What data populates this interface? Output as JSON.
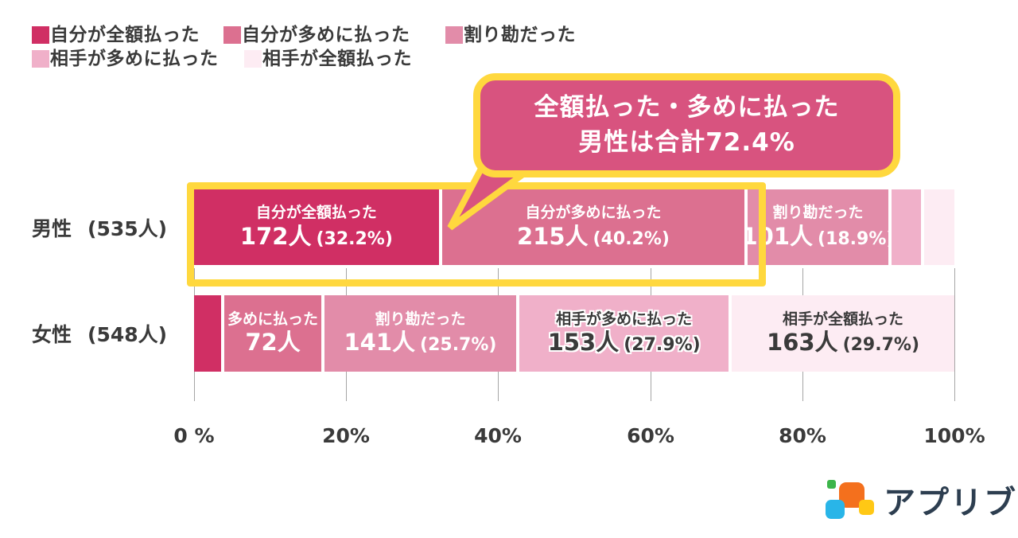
{
  "logo": {
    "text": "アプリブ"
  },
  "colors": {
    "background": "#ffffff",
    "series": [
      "#d02f64",
      "#dc7090",
      "#e28ca9",
      "#f0b0c9",
      "#fdecf3"
    ],
    "callout_fill": "#d8537f",
    "highlight_yellow": "#ffd83e",
    "grid": "#a5a5a5",
    "text_dark": "#3a3a3a",
    "logo_text": "#2d3e50",
    "logo_squares": {
      "orange": "#f4701d",
      "green": "#3cb54a",
      "blue": "#29b5e8",
      "yellow": "#ffc815"
    }
  },
  "chart_data": {
    "type": "bar",
    "subtype": "horizontal_stacked_percentage",
    "x_range": [
      0,
      100
    ],
    "x_ticks": [
      "0 %",
      "20%",
      "40%",
      "60%",
      "80%",
      "100%"
    ],
    "grid": true,
    "legend_position": "top-left",
    "legend": [
      "自分が全額払った",
      "自分が多めに払った",
      "割り勘だった",
      "相手が多めに払った",
      "相手が全額払った"
    ],
    "rows": [
      {
        "category": "男性",
        "total_label": "(535人)",
        "total": 535,
        "segments": [
          {
            "name": "自分が全額払った",
            "count": 172,
            "pct": 32.2,
            "label_line1": "自分が全額払った",
            "label_num": "172人",
            "label_pct": "(32.2%)",
            "text_style": "light"
          },
          {
            "name": "自分が多めに払った",
            "count": 215,
            "pct": 40.2,
            "label_line1": "自分が多めに払った",
            "label_num": "215人",
            "label_pct": "(40.2%)",
            "text_style": "light"
          },
          {
            "name": "割り勘だった",
            "count": 101,
            "pct": 18.9,
            "label_line1": "割り勘だった",
            "label_num": "101人",
            "label_pct": "(18.9%)",
            "text_style": "light"
          },
          {
            "name": "相手が多めに払った",
            "count": 23,
            "pct": 4.3,
            "estimated": true
          },
          {
            "name": "相手が全額払った",
            "count": 24,
            "pct": 4.4,
            "estimated": true
          }
        ]
      },
      {
        "category": "女性",
        "total_label": "(548人)",
        "total": 548,
        "segments": [
          {
            "name": "自分が全額払った",
            "count": 19,
            "pct": 3.6,
            "estimated": true
          },
          {
            "name": "自分が多めに払った",
            "count": 72,
            "pct": 13.1,
            "label_line1": "多めに払った",
            "label_num": "72人",
            "label_pct": "",
            "text_style": "light"
          },
          {
            "name": "割り勘だった",
            "count": 141,
            "pct": 25.7,
            "label_line1": "割り勘だった",
            "label_num": "141人",
            "label_pct": "(25.7%)",
            "text_style": "light"
          },
          {
            "name": "相手が多めに払った",
            "count": 153,
            "pct": 27.9,
            "label_line1": "相手が多めに払った",
            "label_num": "153人",
            "label_pct": "(27.9%)",
            "text_style": "dark-outline"
          },
          {
            "name": "相手が全額払った",
            "count": 163,
            "pct": 29.7,
            "label_line1": "相手が全額払った",
            "label_num": "163人",
            "label_pct": "(29.7%)",
            "text_style": "dark"
          }
        ]
      }
    ],
    "annotation": {
      "line1": "全額払った・多めに払った",
      "line2": "男性は合計72.4%",
      "highlight_row": "男性",
      "highlight_pct": 72.4
    }
  }
}
